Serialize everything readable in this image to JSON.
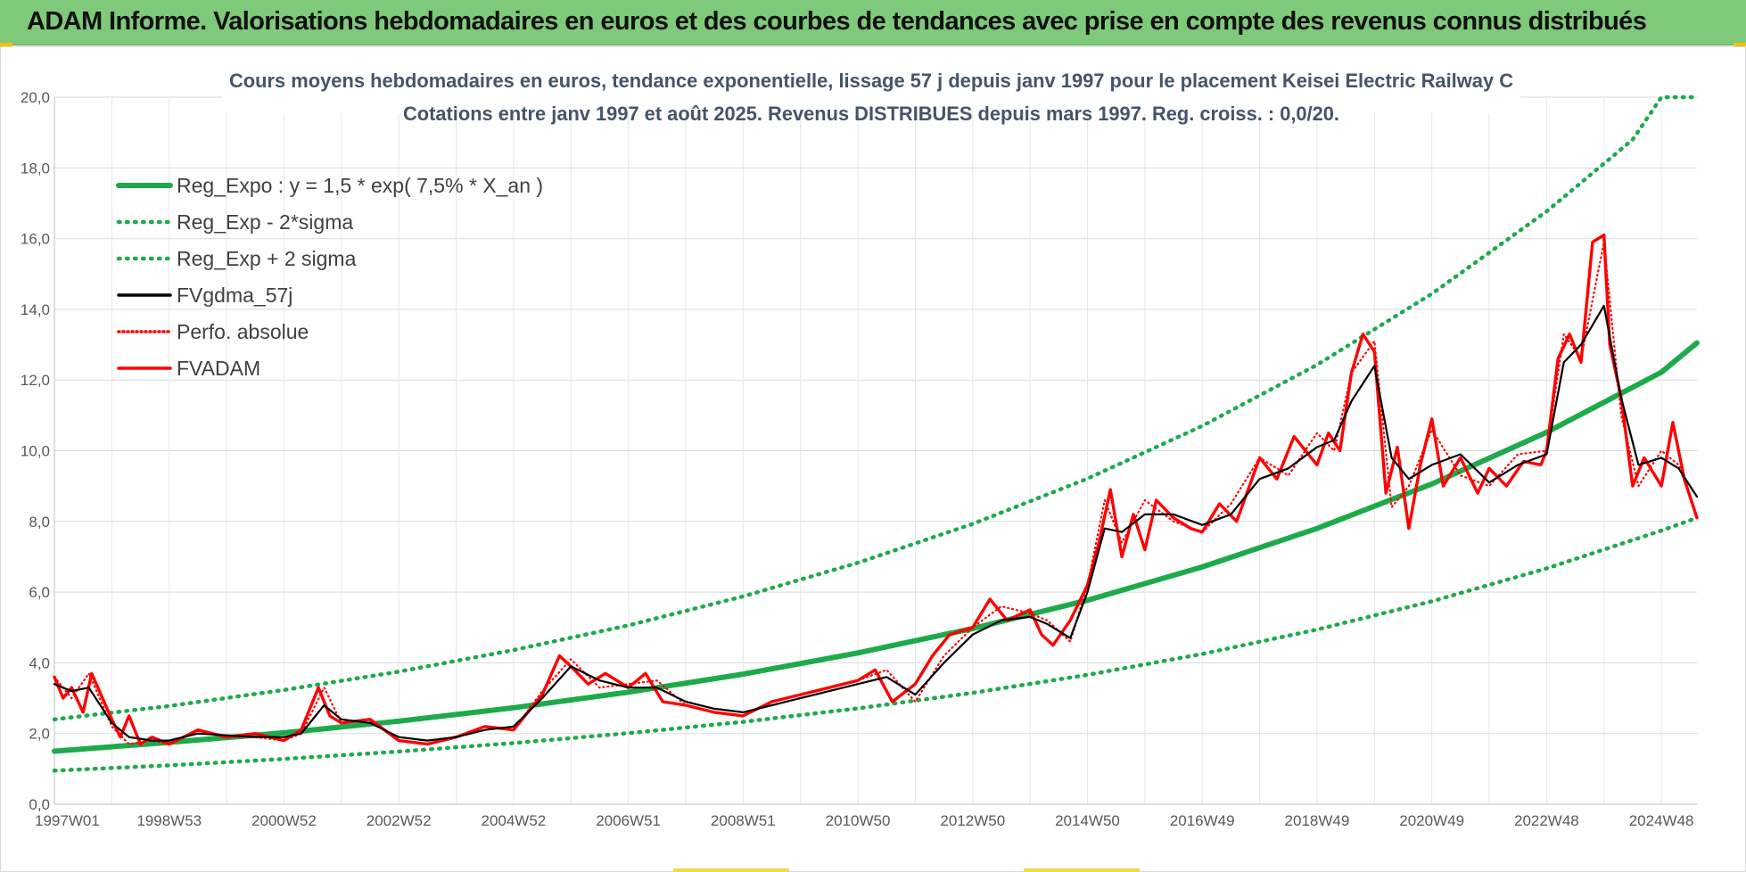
{
  "banner": {
    "title": "ADAM Informe. Valorisations hebdomadaires en euros et des courbes de tendances avec prise en compte des revenus connus distribués"
  },
  "colors": {
    "banner": "#7fc97a",
    "reg_expo": "#1daa4b",
    "fvgdma": "#000000",
    "fvadam": "#ff0000",
    "grid": "#d9d9d9"
  },
  "chart_data": {
    "type": "line",
    "title_line1": "Cours moyens hebdomadaires en euros, tendance exponentielle, lissage 57 j depuis janv 1997 pour le placement Keisei Electric Railway C",
    "title_line2": "Cotations entre janv 1997 et août 2025.  Revenus DISTRIBUES depuis mars 1997. Reg. croiss. : 0,0/20.",
    "x_range": [
      1997.0,
      2025.62
    ],
    "ylim": [
      0,
      20
    ],
    "y_ticks": [
      "0,0",
      "2,0",
      "4,0",
      "6,0",
      "8,0",
      "10,0",
      "12,0",
      "14,0",
      "16,0",
      "18,0",
      "20,0"
    ],
    "x_ticks": [
      {
        "label": "1997W01",
        "x": 1997.0
      },
      {
        "label": "1998W53",
        "x": 1999.0
      },
      {
        "label": "2000W52",
        "x": 2001.0
      },
      {
        "label": "2002W52",
        "x": 2003.0
      },
      {
        "label": "2004W52",
        "x": 2005.0
      },
      {
        "label": "2006W51",
        "x": 2007.0
      },
      {
        "label": "2008W51",
        "x": 2009.0
      },
      {
        "label": "2010W50",
        "x": 2011.0
      },
      {
        "label": "2012W50",
        "x": 2013.0
      },
      {
        "label": "2014W50",
        "x": 2015.0
      },
      {
        "label": "2016W49",
        "x": 2017.0
      },
      {
        "label": "2018W49",
        "x": 2019.0
      },
      {
        "label": "2020W49",
        "x": 2021.0
      },
      {
        "label": "2022W48",
        "x": 2023.0
      },
      {
        "label": "2024W48",
        "x": 2025.0
      }
    ],
    "legend_placement": "top-left",
    "grid": true,
    "series": [
      {
        "name": "Reg_Expo : y = 1,5 * exp( 7,5% *  X_an )",
        "style": "solid-thick",
        "x": [
          1997.0,
          1999.0,
          2001.0,
          2003.0,
          2005.0,
          2007.0,
          2009.0,
          2011.0,
          2013.0,
          2015.0,
          2017.0,
          2019.0,
          2021.0,
          2023.0,
          2025.0,
          2025.62
        ],
        "y": [
          1.5,
          1.75,
          2.02,
          2.35,
          2.73,
          3.17,
          3.68,
          4.28,
          4.97,
          5.77,
          6.71,
          7.8,
          9.06,
          10.52,
          12.22,
          13.05
        ]
      },
      {
        "name": "Reg_Exp - 2*sigma",
        "style": "dotted",
        "x": [
          1997.0,
          1999.0,
          2001.0,
          2003.0,
          2005.0,
          2007.0,
          2009.0,
          2011.0,
          2013.0,
          2015.0,
          2017.0,
          2019.0,
          2021.0,
          2023.0,
          2025.0,
          2025.62
        ],
        "y": [
          0.95,
          1.1,
          1.28,
          1.49,
          1.73,
          2.01,
          2.33,
          2.71,
          3.15,
          3.66,
          4.25,
          4.94,
          5.74,
          6.67,
          7.74,
          8.1
        ]
      },
      {
        "name": "Reg_Exp + 2 sigma",
        "style": "dotted",
        "x": [
          1997.0,
          1999.0,
          2001.0,
          2003.0,
          2005.0,
          2007.0,
          2009.0,
          2011.0,
          2013.0,
          2015.0,
          2017.0,
          2019.0,
          2021.0,
          2023.0,
          2024.5,
          2025.0,
          2025.62
        ],
        "y": [
          2.4,
          2.78,
          3.23,
          3.75,
          4.36,
          5.06,
          5.88,
          6.83,
          7.93,
          9.21,
          10.7,
          12.43,
          14.44,
          16.77,
          18.8,
          20.0,
          20.0
        ]
      },
      {
        "name": "FVgdma_57j",
        "style": "solid",
        "x": [
          1997.0,
          1997.3,
          1997.6,
          1998.0,
          1998.3,
          1998.7,
          1999.0,
          1999.5,
          2000.0,
          2000.5,
          2001.0,
          2001.3,
          2001.7,
          2002.0,
          2002.5,
          2003.0,
          2003.5,
          2004.0,
          2004.5,
          2005.0,
          2005.5,
          2006.0,
          2006.5,
          2007.0,
          2007.5,
          2008.0,
          2008.5,
          2009.0,
          2009.5,
          2010.0,
          2010.5,
          2011.0,
          2011.5,
          2012.0,
          2012.5,
          2013.0,
          2013.5,
          2014.0,
          2014.3,
          2014.7,
          2015.0,
          2015.3,
          2015.6,
          2016.0,
          2016.5,
          2017.0,
          2017.5,
          2018.0,
          2018.5,
          2019.0,
          2019.3,
          2019.6,
          2020.0,
          2020.3,
          2020.6,
          2021.0,
          2021.5,
          2022.0,
          2022.5,
          2023.0,
          2023.3,
          2023.6,
          2024.0,
          2024.3,
          2024.6,
          2025.0,
          2025.3,
          2025.62
        ],
        "y": [
          3.4,
          3.2,
          3.3,
          2.3,
          1.9,
          1.8,
          1.8,
          2.0,
          1.95,
          1.9,
          1.9,
          2.0,
          2.8,
          2.4,
          2.3,
          1.9,
          1.8,
          1.9,
          2.1,
          2.2,
          3.0,
          3.9,
          3.5,
          3.3,
          3.3,
          2.9,
          2.7,
          2.6,
          2.8,
          3.0,
          3.2,
          3.4,
          3.6,
          3.1,
          4.0,
          4.8,
          5.2,
          5.3,
          5.1,
          4.7,
          6.0,
          7.8,
          7.7,
          8.2,
          8.2,
          7.9,
          8.2,
          9.2,
          9.5,
          10.1,
          10.3,
          11.4,
          12.4,
          9.8,
          9.2,
          9.6,
          9.9,
          9.1,
          9.6,
          9.9,
          12.5,
          13.0,
          14.1,
          11.5,
          9.6,
          9.8,
          9.5,
          8.7
        ]
      },
      {
        "name": "Perfo. absolue",
        "style": "dotted",
        "x": [
          1997.0,
          1997.3,
          1997.6,
          1998.0,
          1998.3,
          1998.7,
          1999.0,
          1999.5,
          2000.0,
          2000.5,
          2001.0,
          2001.3,
          2001.7,
          2002.0,
          2002.5,
          2003.0,
          2003.5,
          2004.0,
          2004.5,
          2005.0,
          2005.5,
          2006.0,
          2006.5,
          2007.0,
          2007.5,
          2008.0,
          2008.5,
          2009.0,
          2009.5,
          2010.0,
          2010.5,
          2011.0,
          2011.5,
          2012.0,
          2012.5,
          2013.0,
          2013.5,
          2014.0,
          2014.3,
          2014.7,
          2015.0,
          2015.3,
          2015.6,
          2016.0,
          2016.5,
          2017.0,
          2017.5,
          2018.0,
          2018.5,
          2019.0,
          2019.3,
          2019.6,
          2020.0,
          2020.3,
          2020.6,
          2021.0,
          2021.5,
          2022.0,
          2022.5,
          2023.0,
          2023.3,
          2023.6,
          2024.0,
          2024.3,
          2024.6,
          2025.0,
          2025.3,
          2025.62
        ],
        "y": [
          3.6,
          3.0,
          3.7,
          2.2,
          1.7,
          1.8,
          1.7,
          2.1,
          1.9,
          1.9,
          1.8,
          2.0,
          3.3,
          2.3,
          2.4,
          1.8,
          1.7,
          1.9,
          2.2,
          2.1,
          3.2,
          4.1,
          3.3,
          3.4,
          3.5,
          2.8,
          2.6,
          2.5,
          2.9,
          3.1,
          3.3,
          3.5,
          3.8,
          2.9,
          4.2,
          5.0,
          5.6,
          5.4,
          5.2,
          4.6,
          6.2,
          8.6,
          7.4,
          8.6,
          8.0,
          7.7,
          8.5,
          9.8,
          9.3,
          10.5,
          10.0,
          12.2,
          13.1,
          8.4,
          9.0,
          10.6,
          9.3,
          9.0,
          9.9,
          10.0,
          13.3,
          12.6,
          15.9,
          11.0,
          9.0,
          10.0,
          9.6,
          8.1
        ]
      },
      {
        "name": "FVADAM",
        "style": "solid-thick",
        "x": [
          1997.0,
          1997.15,
          1997.3,
          1997.5,
          1997.65,
          1998.0,
          1998.15,
          1998.3,
          1998.5,
          1998.7,
          1999.0,
          1999.5,
          2000.0,
          2000.5,
          2001.0,
          2001.3,
          2001.6,
          2001.8,
          2002.0,
          2002.5,
          2003.0,
          2003.5,
          2004.0,
          2004.5,
          2005.0,
          2005.5,
          2005.8,
          2006.0,
          2006.3,
          2006.6,
          2007.0,
          2007.3,
          2007.6,
          2008.0,
          2008.5,
          2009.0,
          2009.5,
          2010.0,
          2010.5,
          2011.0,
          2011.3,
          2011.6,
          2012.0,
          2012.3,
          2012.6,
          2013.0,
          2013.3,
          2013.6,
          2014.0,
          2014.2,
          2014.4,
          2014.7,
          2015.0,
          2015.2,
          2015.4,
          2015.6,
          2015.8,
          2016.0,
          2016.2,
          2016.5,
          2016.8,
          2017.0,
          2017.3,
          2017.6,
          2018.0,
          2018.3,
          2018.6,
          2019.0,
          2019.2,
          2019.4,
          2019.6,
          2019.8,
          2020.0,
          2020.2,
          2020.4,
          2020.6,
          2020.8,
          2021.0,
          2021.2,
          2021.5,
          2021.8,
          2022.0,
          2022.3,
          2022.6,
          2022.9,
          2023.0,
          2023.2,
          2023.4,
          2023.6,
          2023.8,
          2024.0,
          2024.1,
          2024.3,
          2024.5,
          2024.7,
          2025.0,
          2025.2,
          2025.4,
          2025.62
        ],
        "y": [
          3.6,
          3.0,
          3.3,
          2.6,
          3.7,
          2.4,
          1.9,
          2.5,
          1.7,
          1.9,
          1.7,
          2.1,
          1.9,
          2.0,
          1.8,
          2.1,
          3.3,
          2.5,
          2.3,
          2.4,
          1.8,
          1.7,
          1.9,
          2.2,
          2.1,
          3.1,
          4.2,
          3.9,
          3.4,
          3.7,
          3.3,
          3.7,
          2.9,
          2.8,
          2.6,
          2.5,
          2.9,
          3.1,
          3.3,
          3.5,
          3.8,
          2.9,
          3.4,
          4.2,
          4.8,
          5.0,
          5.8,
          5.2,
          5.5,
          4.8,
          4.5,
          5.2,
          6.2,
          7.4,
          8.9,
          7.0,
          8.2,
          7.2,
          8.6,
          8.1,
          7.8,
          7.7,
          8.5,
          8.0,
          9.8,
          9.2,
          10.4,
          9.6,
          10.5,
          10.0,
          12.2,
          13.3,
          12.8,
          8.8,
          10.1,
          7.8,
          9.6,
          10.9,
          9.0,
          9.8,
          8.8,
          9.5,
          9.0,
          9.7,
          9.6,
          10.0,
          12.6,
          13.3,
          12.5,
          15.9,
          16.1,
          13.0,
          11.5,
          9.0,
          9.8,
          9.0,
          10.8,
          9.2,
          8.1
        ]
      }
    ]
  }
}
